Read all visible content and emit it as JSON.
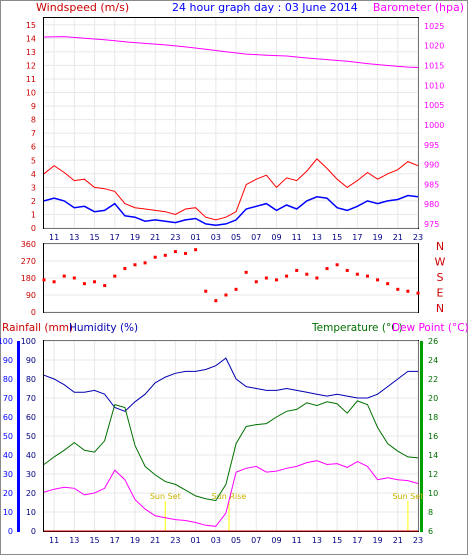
{
  "title": "24 hour graph day : 03 June 2014",
  "x_ticks": [
    "11",
    "13",
    "15",
    "17",
    "19",
    "21",
    "23",
    "01",
    "03",
    "05",
    "07",
    "09",
    "11",
    "13",
    "15",
    "17",
    "19",
    "21",
    "23"
  ],
  "wind_panel": {
    "left_label": "Windspeed (m/s)",
    "right_label": "Barometer (hpa)",
    "left_ticks": [
      "0",
      "1",
      "2",
      "3",
      "4",
      "5",
      "6",
      "7",
      "8",
      "9",
      "10",
      "11",
      "12",
      "13",
      "14",
      "15"
    ],
    "right_ticks": [
      "975",
      "980",
      "985",
      "990",
      "995",
      "1000",
      "1005",
      "1010",
      "1015",
      "1020",
      "1025"
    ]
  },
  "direction_panel": {
    "left_ticks": [
      "0",
      "90",
      "180",
      "270",
      "360"
    ],
    "right_letters": [
      "N",
      "W",
      "S",
      "E",
      "N"
    ]
  },
  "temp_panel": {
    "rain_label": "Rainfall (mm)",
    "humidity_label": "Humidity (%)",
    "temp_label": "Temperature (°C)",
    "dew_label": "Dew Point (°C)",
    "rain_ticks": [
      "0",
      "10",
      "20",
      "30",
      "40",
      "50",
      "60",
      "70",
      "80",
      "90",
      "100"
    ],
    "humidity_ticks": [
      "0",
      "10",
      "20",
      "30",
      "40",
      "50",
      "60",
      "70",
      "80",
      "90",
      "100"
    ],
    "temp_ticks": [
      "6",
      "8",
      "10",
      "12",
      "14",
      "16",
      "18",
      "20",
      "22",
      "24",
      "26"
    ]
  },
  "sun_events": [
    {
      "label": "Sun Set",
      "hour": 12.0
    },
    {
      "label": "Sun Rise",
      "hour": 18.3
    },
    {
      "label": "Sun Set",
      "hour": 36.0
    }
  ],
  "colors": {
    "wind_gust": "#ff0000",
    "wind_avg": "#0000ff",
    "barometer": "#ff00ff",
    "direction": "#ff0000",
    "humidity": "#0000b0",
    "temperature": "#007000",
    "dew_point": "#ff00ff",
    "rain_axis": "#0000ff",
    "sun_event": "#ffff00"
  },
  "chart_data": [
    {
      "type": "line",
      "x_unit": "hours since 10:00",
      "xlim": [
        0,
        37
      ],
      "series": [
        {
          "name": "Windspeed",
          "axis": "left",
          "ylim": [
            0,
            15.5
          ],
          "x": [
            0,
            1,
            2,
            3,
            4,
            5,
            6,
            7,
            8,
            9,
            10,
            11,
            12,
            13,
            14,
            15,
            16,
            17,
            18,
            19,
            20,
            21,
            22,
            23,
            24,
            25,
            26,
            27,
            28,
            29,
            30,
            31,
            32,
            33,
            34,
            35,
            36,
            37
          ],
          "y": [
            2.0,
            2.2,
            2.0,
            1.5,
            1.6,
            1.2,
            1.3,
            1.8,
            0.9,
            0.8,
            0.5,
            0.6,
            0.5,
            0.4,
            0.6,
            0.7,
            0.3,
            0.2,
            0.3,
            0.6,
            1.4,
            1.6,
            1.8,
            1.3,
            1.7,
            1.4,
            2.0,
            2.3,
            2.2,
            1.5,
            1.3,
            1.6,
            2.0,
            1.8,
            2.0,
            2.1,
            2.4,
            2.3
          ]
        },
        {
          "name": "Gust",
          "axis": "left",
          "ylim": [
            0,
            15.5
          ],
          "x": [
            0,
            1,
            2,
            3,
            4,
            5,
            6,
            7,
            8,
            9,
            10,
            11,
            12,
            13,
            14,
            15,
            16,
            17,
            18,
            19,
            20,
            21,
            22,
            23,
            24,
            25,
            26,
            27,
            28,
            29,
            30,
            31,
            32,
            33,
            34,
            35,
            36,
            37
          ],
          "y": [
            4.0,
            4.6,
            4.1,
            3.5,
            3.6,
            3.0,
            2.9,
            2.7,
            1.8,
            1.5,
            1.4,
            1.3,
            1.2,
            1.0,
            1.4,
            1.5,
            0.8,
            0.6,
            0.8,
            1.2,
            3.2,
            3.6,
            3.9,
            3.0,
            3.7,
            3.5,
            4.2,
            5.1,
            4.4,
            3.6,
            3.0,
            3.5,
            4.1,
            3.6,
            4.0,
            4.3,
            4.9,
            4.6
          ]
        },
        {
          "name": "Barometer",
          "axis": "right",
          "ylim": [
            974,
            1027
          ],
          "x": [
            0,
            2,
            4,
            6,
            8,
            10,
            12,
            14,
            16,
            18,
            20,
            22,
            24,
            26,
            28,
            30,
            32,
            34,
            36,
            37
          ],
          "y": [
            1022.2,
            1022.3,
            1021.9,
            1021.5,
            1021.0,
            1020.6,
            1020.2,
            1019.7,
            1019.1,
            1018.5,
            1017.9,
            1017.6,
            1017.4,
            1016.9,
            1016.5,
            1016.1,
            1015.5,
            1015.0,
            1014.6,
            1014.5
          ]
        }
      ]
    },
    {
      "type": "scatter",
      "name": "Wind direction",
      "x_unit": "hours since 10:00",
      "xlim": [
        0,
        37
      ],
      "ylim": [
        0,
        360
      ],
      "x": [
        0,
        1,
        2,
        3,
        4,
        5,
        6,
        7,
        8,
        9,
        10,
        11,
        12,
        13,
        14,
        15,
        16,
        17,
        18,
        19,
        20,
        21,
        22,
        23,
        24,
        25,
        26,
        27,
        28,
        29,
        30,
        31,
        32,
        33,
        34,
        35,
        36,
        37
      ],
      "y": [
        170,
        160,
        190,
        180,
        150,
        160,
        140,
        190,
        230,
        250,
        260,
        290,
        300,
        320,
        310,
        330,
        110,
        60,
        90,
        120,
        210,
        160,
        180,
        170,
        190,
        220,
        200,
        180,
        230,
        250,
        220,
        200,
        190,
        170,
        150,
        120,
        110,
        100
      ]
    },
    {
      "type": "line",
      "x_unit": "hours since 10:00",
      "xlim": [
        0,
        37
      ],
      "series": [
        {
          "name": "Humidity",
          "axis": "humidity",
          "ylim": [
            0,
            100
          ],
          "x": [
            0,
            1,
            2,
            3,
            4,
            5,
            6,
            7,
            8,
            9,
            10,
            11,
            12,
            13,
            14,
            15,
            16,
            17,
            18,
            19,
            20,
            21,
            22,
            23,
            24,
            25,
            26,
            27,
            28,
            29,
            30,
            31,
            32,
            33,
            34,
            35,
            36,
            37
          ],
          "y": [
            82,
            80,
            77,
            73,
            73,
            74,
            72,
            65,
            63,
            68,
            72,
            78,
            81,
            83,
            84,
            84,
            85,
            87,
            91,
            80,
            76,
            75,
            74,
            74,
            75,
            74,
            73,
            72,
            71,
            72,
            71,
            70,
            70,
            72,
            76,
            80,
            84,
            84
          ]
        },
        {
          "name": "Temperature",
          "axis": "temperature",
          "ylim": [
            6,
            26
          ],
          "x": [
            0,
            1,
            2,
            3,
            4,
            5,
            6,
            7,
            8,
            9,
            10,
            11,
            12,
            13,
            14,
            15,
            16,
            17,
            18,
            19,
            20,
            21,
            22,
            23,
            24,
            25,
            26,
            27,
            28,
            29,
            30,
            31,
            32,
            33,
            34,
            35,
            36,
            37
          ],
          "y": [
            13.0,
            13.8,
            14.5,
            15.3,
            14.5,
            14.3,
            15.5,
            19.3,
            19.0,
            15.0,
            12.8,
            11.9,
            11.2,
            10.9,
            10.3,
            9.7,
            9.4,
            9.2,
            10.9,
            15.2,
            17.0,
            17.2,
            17.3,
            18.0,
            18.6,
            18.8,
            19.5,
            19.2,
            19.6,
            19.4,
            18.4,
            19.7,
            19.3,
            16.9,
            15.2,
            14.4,
            13.8,
            13.7
          ]
        },
        {
          "name": "Dew Point",
          "axis": "temperature",
          "ylim": [
            6,
            26
          ],
          "x": [
            0,
            1,
            2,
            3,
            4,
            5,
            6,
            7,
            8,
            9,
            10,
            11,
            12,
            13,
            14,
            15,
            16,
            17,
            18,
            19,
            20,
            21,
            22,
            23,
            24,
            25,
            26,
            27,
            28,
            29,
            30,
            31,
            32,
            33,
            34,
            35,
            36,
            37
          ],
          "y": [
            10.1,
            10.4,
            10.6,
            10.5,
            9.8,
            10.0,
            10.5,
            12.4,
            11.4,
            9.3,
            8.3,
            7.6,
            7.4,
            7.2,
            7.1,
            6.9,
            6.6,
            6.5,
            7.9,
            12.2,
            12.6,
            12.8,
            12.2,
            12.3,
            12.6,
            12.8,
            13.2,
            13.4,
            13.0,
            13.1,
            12.7,
            13.3,
            12.8,
            11.4,
            11.6,
            11.4,
            11.3,
            11.0
          ]
        },
        {
          "name": "Rainfall",
          "axis": "rain",
          "ylim": [
            0,
            100
          ],
          "x": [
            0,
            37
          ],
          "y": [
            0,
            0
          ]
        }
      ]
    }
  ]
}
